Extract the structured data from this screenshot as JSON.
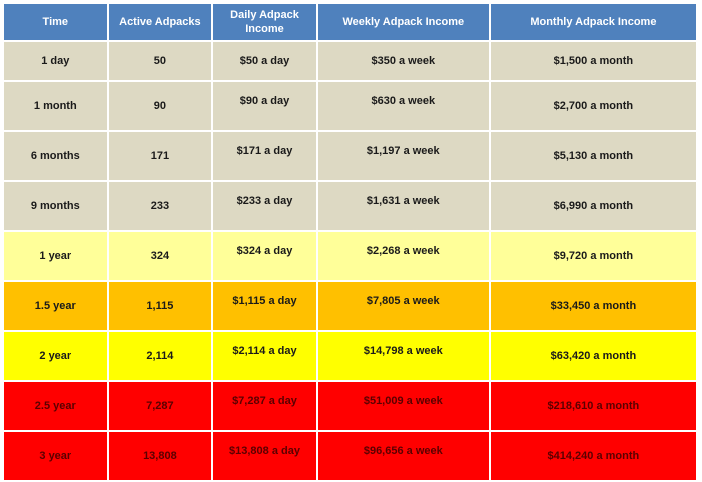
{
  "table": {
    "headers": [
      "Time",
      "Active Adpacks",
      "Daily Adpack Income",
      "Weekly Adpack Income",
      "Monthly  Adpack Income"
    ],
    "rows": [
      {
        "band": "gray",
        "cells": [
          "1 day",
          "50",
          "$50 a day",
          "$350 a week",
          "$1,500 a month"
        ]
      },
      {
        "band": "gray",
        "cells": [
          "1 month",
          "90",
          "$90 a day",
          "$630 a week",
          "$2,700 a month"
        ]
      },
      {
        "band": "gray",
        "cells": [
          "6 months",
          "171",
          "$171 a day",
          "$1,197 a week",
          "$5,130 a month"
        ]
      },
      {
        "band": "gray",
        "cells": [
          "9 months",
          "233",
          "$233 a day",
          "$1,631 a week",
          "$6,990 a month"
        ]
      },
      {
        "band": "lightyellow",
        "cells": [
          "1 year",
          "324",
          "$324 a day",
          "$2,268 a week",
          "$9,720 a month"
        ]
      },
      {
        "band": "orange",
        "cells": [
          "1.5 year",
          "1,115",
          "$1,115 a day",
          "$7,805 a week",
          "$33,450  a month"
        ]
      },
      {
        "band": "yellow",
        "cells": [
          "2 year",
          "2,114",
          "$2,114 a day",
          "$14,798 a week",
          "$63,420 a month"
        ]
      },
      {
        "band": "red",
        "cells": [
          "2.5 year",
          "7,287",
          "$7,287 a day",
          "$51,009 a week",
          "$218,610 a month"
        ]
      },
      {
        "band": "red",
        "cells": [
          "3 year",
          "13,808",
          "$13,808 a day",
          "$96,656 a week",
          "$414,240  a month"
        ]
      }
    ]
  },
  "colors": {
    "header": "#4f81bd",
    "gray": "#ddd9c3",
    "lightyellow": "#ffff99",
    "orange": "#ffc000",
    "yellow": "#ffff00",
    "red": "#ff0000"
  }
}
